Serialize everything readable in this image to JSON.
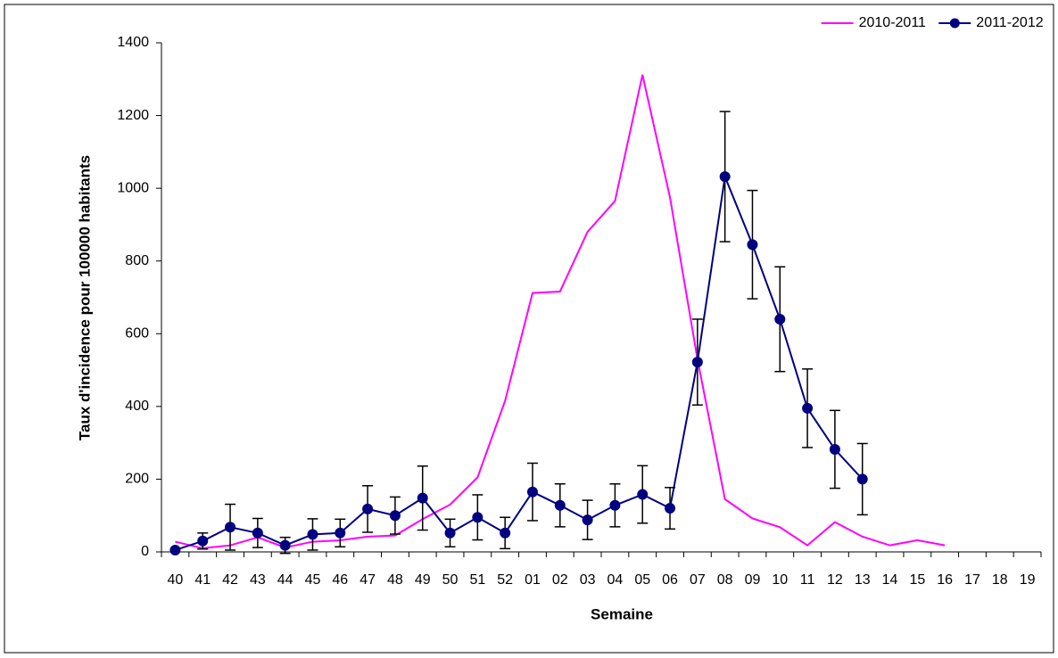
{
  "chart_data": {
    "type": "line",
    "x_label": "Semaine",
    "y_label": "Taux d'incidence pour 100000 habitants",
    "categories": [
      "40",
      "41",
      "42",
      "43",
      "44",
      "45",
      "46",
      "47",
      "48",
      "49",
      "50",
      "51",
      "52",
      "01",
      "02",
      "03",
      "04",
      "05",
      "06",
      "07",
      "08",
      "09",
      "10",
      "11",
      "12",
      "13",
      "14",
      "15",
      "16",
      "17",
      "18",
      "19"
    ],
    "ylim": [
      0,
      1400
    ],
    "yticks": [
      0,
      200,
      400,
      600,
      800,
      1000,
      1200,
      1400
    ],
    "legend": "top-right",
    "series": [
      {
        "name": "2010-2011",
        "color": "#ff00ff",
        "marker": false,
        "values": [
          28,
          10,
          18,
          40,
          12,
          28,
          32,
          42,
          45,
          90,
          130,
          205,
          415,
          712,
          716,
          880,
          965,
          1312,
          975,
          530,
          145,
          92,
          68,
          18,
          82,
          42,
          18,
          32,
          18,
          null,
          null,
          null
        ]
      },
      {
        "name": "2011-2012",
        "color": "#000080",
        "marker": true,
        "values": [
          5,
          30,
          68,
          52,
          18,
          48,
          52,
          118,
          100,
          148,
          52,
          95,
          52,
          165,
          128,
          88,
          128,
          158,
          120,
          522,
          1032,
          845,
          640,
          395,
          282,
          200,
          null,
          null,
          null,
          null,
          null,
          null
        ],
        "errors": [
          null,
          22,
          63,
          40,
          22,
          43,
          38,
          64,
          51,
          88,
          38,
          62,
          43,
          79,
          59,
          54,
          59,
          79,
          57,
          118,
          179,
          149,
          144,
          108,
          107,
          98,
          null,
          null,
          null,
          null,
          null,
          null
        ]
      }
    ]
  }
}
